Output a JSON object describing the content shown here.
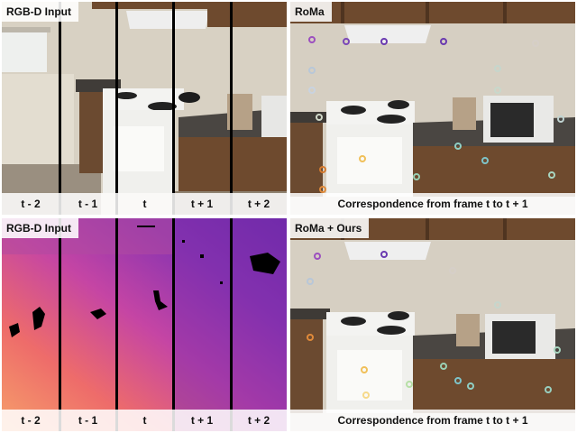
{
  "panels": {
    "rgb": {
      "title": "RGB-D Input",
      "frame_labels": [
        "t - 2",
        "t - 1",
        "t",
        "t + 1",
        "t + 2"
      ]
    },
    "depth": {
      "title": "RGB-D Input",
      "frame_labels": [
        "t - 2",
        "t - 1",
        "t",
        "t + 1",
        "t + 2"
      ]
    },
    "roma": {
      "title": "RoMa",
      "caption": "Correspondence from frame t to t + 1"
    },
    "ours": {
      "title": "RoMa + Ours",
      "caption": "Correspondence from frame t to t + 1"
    }
  },
  "colors": {
    "wall": "#d9d2c4",
    "cabinet": "#6e4a2e",
    "counter": "#4a4642",
    "stove": "#f1f1ee",
    "depth_warm": "#f4834c",
    "depth_mid": "#c244a6",
    "depth_cool": "#6a2aa8"
  }
}
